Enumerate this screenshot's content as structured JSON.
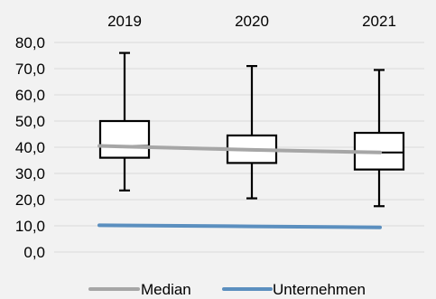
{
  "chart_data": {
    "type": "box",
    "categories": [
      "2019",
      "2020",
      "2021"
    ],
    "ylim": [
      0,
      80
    ],
    "y_ticks": [
      "0,0",
      "10,0",
      "20,0",
      "30,0",
      "40,0",
      "50,0",
      "60,0",
      "70,0",
      "80,0"
    ],
    "y_tick_values": [
      0,
      10,
      20,
      30,
      40,
      50,
      60,
      70,
      80
    ],
    "category_axis_position": "top",
    "grid": true,
    "boxes": [
      {
        "category": "2019",
        "min": 23.5,
        "q1": 36.0,
        "median": 40.5,
        "q3": 50.0,
        "max": 76.0
      },
      {
        "category": "2020",
        "min": 20.5,
        "q1": 34.0,
        "median": 39.0,
        "q3": 44.5,
        "max": 71.0
      },
      {
        "category": "2021",
        "min": 17.5,
        "q1": 31.5,
        "median": 38.0,
        "q3": 45.5,
        "max": 69.5
      }
    ],
    "series": [
      {
        "name": "Median",
        "type": "line",
        "values": [
          40.5,
          39.0,
          38.0
        ],
        "color": "#a6a6a6"
      },
      {
        "name": "Unternehmen",
        "type": "line",
        "values": [
          10.2,
          9.8,
          9.4
        ],
        "color": "#5b8fbf"
      }
    ],
    "legend_position": "bottom",
    "colors": {
      "background": "#f2f2f2",
      "grid": "#d9d9d9",
      "box_stroke": "#000000",
      "box_fill": "#ffffff"
    }
  }
}
